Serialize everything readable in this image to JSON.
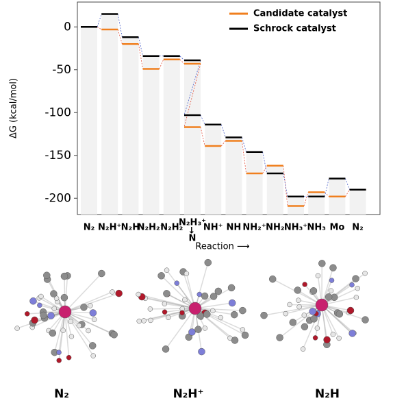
{
  "chart_data": {
    "type": "energy-levels",
    "ylabel": "ΔG (kcal/mol)",
    "xlabel": "Reaction ⟶",
    "categories": [
      "N₂",
      "N₂H⁺",
      "N₂H",
      "N₂H₂⁺",
      "N₂H₂",
      "N₂H₃⁺",
      "N",
      "NH⁺",
      "NH",
      "NH₂⁺",
      "NH₂",
      "NH₃⁺",
      "NH₃",
      "Mo",
      "N₂"
    ],
    "series": [
      {
        "name": "Candidate catalyst",
        "color": "#f07f1e",
        "link_color": "#e0503c",
        "values": [
          0,
          -3,
          -20,
          -49,
          -38,
          -43,
          -117,
          -139,
          -133,
          -171,
          -162,
          -209,
          -193,
          -198,
          -190
        ]
      },
      {
        "name": "Schrock catalyst",
        "color": "#000000",
        "link_color": "#4a5fc8",
        "values": [
          0,
          15,
          -12,
          -34,
          -34,
          -39,
          -103,
          -114,
          -129,
          -146,
          -171,
          -198,
          -198,
          -177,
          -190
        ]
      }
    ],
    "ylim": [
      -219,
      29
    ],
    "yticks": [
      0,
      -50,
      -100,
      -150,
      -200
    ],
    "legend": "upper right"
  },
  "structures": [
    "N₂",
    "N₂H⁺",
    "N₂H"
  ]
}
